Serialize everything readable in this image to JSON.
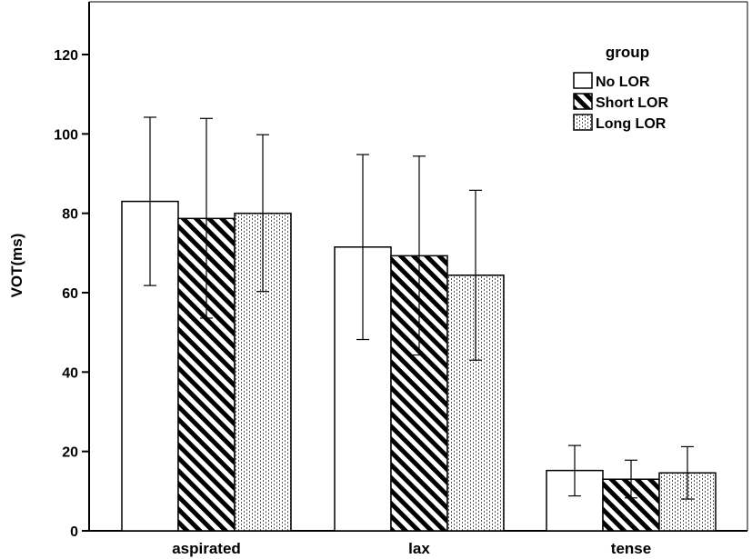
{
  "chart_data": {
    "type": "bar",
    "title": "",
    "xlabel": "",
    "ylabel": "VOT(ms)",
    "ylim": [
      0,
      130
    ],
    "yticks": [
      0,
      20,
      40,
      60,
      80,
      100,
      120
    ],
    "categories": [
      "aspirated",
      "lax",
      "tense"
    ],
    "legend": {
      "title": "group",
      "placement": "top-right"
    },
    "error_bars": true,
    "grid": false,
    "series": [
      {
        "name": "No LOR",
        "pattern": "solid-white",
        "values": [
          83,
          71.5,
          15.2
        ],
        "error_low": [
          61.8,
          48.2,
          8.8
        ],
        "error_high": [
          104.2,
          94.8,
          21.5
        ]
      },
      {
        "name": "Short LOR",
        "pattern": "diagonal-hatch",
        "values": [
          78.7,
          69.3,
          13.0
        ],
        "error_low": [
          53.6,
          44.3,
          8.3
        ],
        "error_high": [
          103.9,
          94.4,
          17.8
        ]
      },
      {
        "name": "Long LOR",
        "pattern": "dotted-vertical",
        "values": [
          80.0,
          64.4,
          14.6
        ],
        "error_low": [
          60.3,
          43.0,
          8.0
        ],
        "error_high": [
          99.8,
          85.8,
          21.2
        ]
      }
    ]
  }
}
